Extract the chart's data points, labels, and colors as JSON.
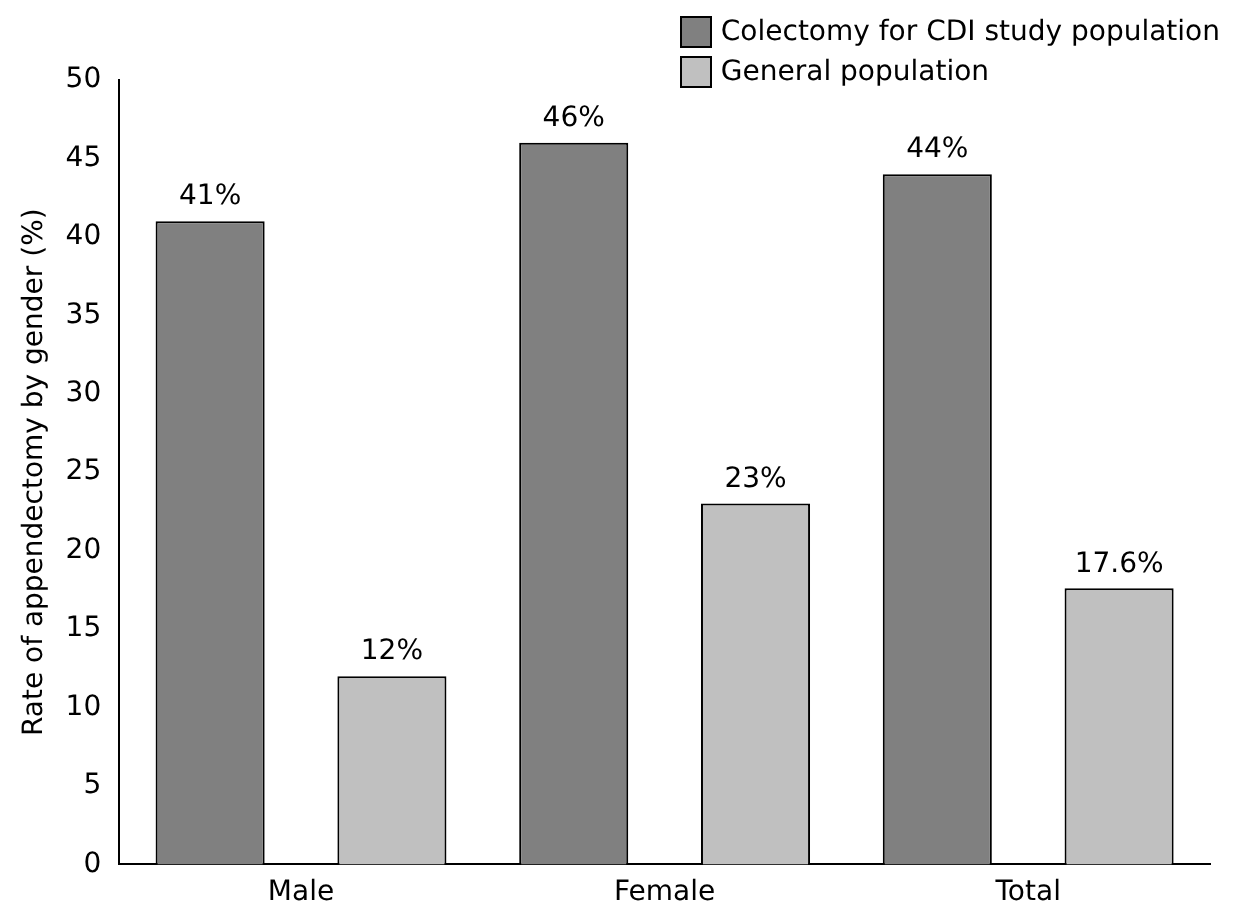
{
  "chart_data": {
    "type": "bar",
    "ylabel": "Rate of appendectomy by gender (%)",
    "categories": [
      "Male",
      "Female",
      "Total"
    ],
    "series": [
      {
        "name": "Colectomy for CDI study population",
        "color": "#808080",
        "values": [
          41,
          46,
          44
        ],
        "value_labels": [
          "41%",
          "46%",
          "44%"
        ]
      },
      {
        "name": "General population",
        "color": "#c0c0c0",
        "values": [
          12,
          23,
          17.6
        ],
        "value_labels": [
          "12%",
          "23%",
          "17.6%"
        ]
      }
    ],
    "ylim": [
      0,
      50
    ],
    "yticks": [
      0,
      5,
      10,
      15,
      20,
      25,
      30,
      35,
      40,
      45,
      50
    ],
    "grid": false,
    "legend": "top right"
  }
}
